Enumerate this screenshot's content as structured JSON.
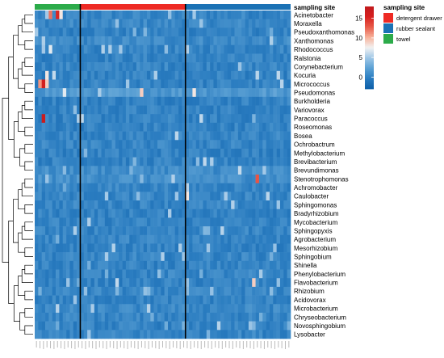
{
  "chart_data": {
    "type": "heatmap",
    "title": "",
    "annotation": {
      "title": "sampling site",
      "groups": [
        {
          "name": "towel",
          "color": "#2cab4a",
          "columns": 13
        },
        {
          "name": "detergent drawer",
          "color": "#ee2a24",
          "columns": 30
        },
        {
          "name": "rubber sealant",
          "color": "#1b72b5",
          "columns": 30
        }
      ],
      "legend_order": [
        "detergent drawer",
        "rubber sealant",
        "towel"
      ]
    },
    "colorbar": {
      "ticks": [
        0,
        5,
        10,
        15
      ],
      "range": [
        -3,
        18
      ],
      "colors": [
        "#0d5fa8",
        "#2a7cc0",
        "#5aa0d4",
        "#9ec6e6",
        "#f2f2f2",
        "#f7b29b",
        "#e85b4a",
        "#d7201f",
        "#c01a1d"
      ]
    },
    "rows": [
      "Acinetobacter",
      "Moraxella",
      "Pseudoxanthomonas",
      "Xanthomonas",
      "Rhodococcus",
      "Ralstonia",
      "Corynebacterium",
      "Kocuria",
      "Micrococcus",
      "Pseudomonas",
      "Burkholderia",
      "Variovorax",
      "Paracoccus",
      "Roseomonas",
      "Bosea",
      "Ochrobactrum",
      "Methylobacterium",
      "Brevibacterium",
      "Brevundimonas",
      "Stenotrophomonas",
      "Achromobacter",
      "Caulobacter",
      "Sphingomonas",
      "Bradyrhizobium",
      "Mycobacterium",
      "Sphingopyxis",
      "Agrobacterium",
      "Mesorhizobium",
      "Sphingobium",
      "Shinella",
      "Phenylobacterium",
      "Flavobacterium",
      "Rhizobium",
      "Acidovorax",
      "Microbacterium",
      "Chryseobacterium",
      "Novosphingobium",
      "Lysobacter"
    ],
    "row_base": [
      0.2,
      0.3,
      0.1,
      0.4,
      0.2,
      0.1,
      0.2,
      0.1,
      0.1,
      0.9,
      0.1,
      0.1,
      0.1,
      0.1,
      0.2,
      0.2,
      0.1,
      0.1,
      0.5,
      0.6,
      0.2,
      0.2,
      0.2,
      0.1,
      0.1,
      0.2,
      0.2,
      0.1,
      0.2,
      0.1,
      0.2,
      0.1,
      0.2,
      0.1,
      0.3,
      0.2,
      0.1,
      0.2
    ],
    "hotspots": [
      {
        "row": 0,
        "col": 4,
        "value": 12
      },
      {
        "row": 0,
        "col": 6,
        "value": 15
      },
      {
        "row": 0,
        "col": 7,
        "value": 8
      },
      {
        "row": 4,
        "col": 4,
        "value": 7
      },
      {
        "row": 7,
        "col": 3,
        "value": 8
      },
      {
        "row": 7,
        "col": 5,
        "value": 6
      },
      {
        "row": 8,
        "col": 1,
        "value": 11
      },
      {
        "row": 8,
        "col": 2,
        "value": 16
      },
      {
        "row": 8,
        "col": 3,
        "value": 9
      },
      {
        "row": 9,
        "col": 8,
        "value": 7
      },
      {
        "row": 9,
        "col": 30,
        "value": 9
      },
      {
        "row": 9,
        "col": 45,
        "value": 8
      },
      {
        "row": 12,
        "col": 2,
        "value": 17
      },
      {
        "row": 18,
        "col": 58,
        "value": 6
      },
      {
        "row": 19,
        "col": 63,
        "value": 13
      },
      {
        "row": 21,
        "col": 43,
        "value": 8
      },
      {
        "row": 31,
        "col": 62,
        "value": 9
      },
      {
        "row": 0,
        "col": 45,
        "value": 5
      },
      {
        "row": 18,
        "col": 65,
        "value": 5
      }
    ],
    "columns_total": 73,
    "column_group_boundaries": [
      13,
      43
    ],
    "xlabel": "",
    "ylabel": "",
    "grid": false,
    "legend_position": "top-right"
  }
}
